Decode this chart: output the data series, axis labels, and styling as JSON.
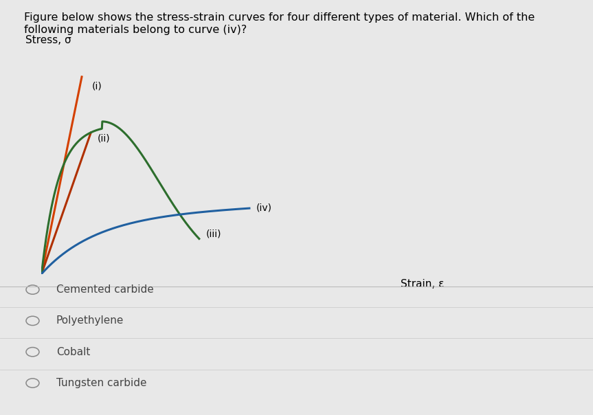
{
  "title_text": "Figure below shows the stress-strain curves for four different types of material. Which of the\nfollowing materials belong to curve (iv)?",
  "ylabel": "Stress, σ",
  "xlabel": "Strain, ε",
  "background_color": "#e8e8e8",
  "curve_colors": {
    "i": "#d44000",
    "ii": "#b03000",
    "iii": "#2d6e2d",
    "iv": "#2060a0"
  },
  "options": [
    "Cemented carbide",
    "Polyethylene",
    "Cobalt",
    "Tungsten carbide"
  ],
  "title_fontsize": 11.5,
  "label_fontsize": 11,
  "curve_label_fontsize": 10,
  "option_fontsize": 11
}
